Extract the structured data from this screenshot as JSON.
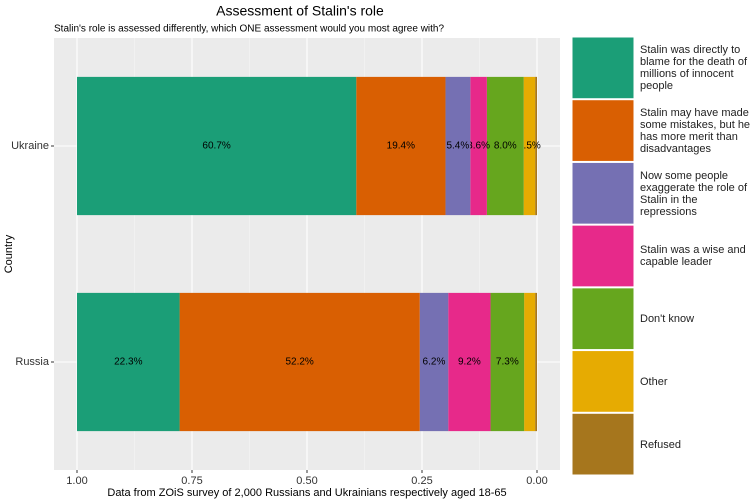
{
  "chart_data": {
    "type": "stacked-bar-horizontal",
    "title": "Assessment of Stalin's role",
    "subtitle": "Stalin's role is assessed differently, which ONE assessment would you most agree with?",
    "x_label": "Data from ZOiS survey of 2,000 Russians and Ukrainians respectively aged 18-65",
    "y_label": "Country",
    "categories": [
      "Ukraine",
      "Russia"
    ],
    "series": [
      {
        "name": "Stalin was directly to blame for the death of millions of innocent people",
        "color": "#1b9e77",
        "values": [
          0.607,
          0.223
        ],
        "value_labels": [
          "60.7%",
          "22.3%"
        ]
      },
      {
        "name": "Stalin may have made some mistakes, but he has more merit than disadvantages",
        "color": "#d95f02",
        "values": [
          0.194,
          0.522
        ],
        "value_labels": [
          "19.4%",
          "52.2%"
        ]
      },
      {
        "name": "Now some people exaggerate the role of Stalin in the repressions",
        "color": "#7570b3",
        "values": [
          0.054,
          0.062
        ],
        "value_labels": [
          "5.4%",
          "6.2%"
        ]
      },
      {
        "name": "Stalin was a wise and capable leader",
        "color": "#e7298a",
        "values": [
          0.036,
          0.092
        ],
        "value_labels": [
          "3.6%",
          "9.2%"
        ]
      },
      {
        "name": "Don't know",
        "color": "#66a61e",
        "values": [
          0.08,
          0.073
        ],
        "value_labels": [
          "8.0%",
          "7.3%"
        ]
      },
      {
        "name": "Other",
        "color": "#e6ab02",
        "values": [
          0.025,
          0.024
        ],
        "value_labels": [
          "2.5%",
          null
        ]
      },
      {
        "name": "Refused",
        "color": "#a6761d",
        "values": [
          0.004,
          0.004
        ],
        "value_labels": [
          null,
          null
        ]
      }
    ],
    "xlim": [
      1.05,
      -0.05
    ],
    "xticks": [
      {
        "value": 1,
        "label": "1.00"
      },
      {
        "value": 0.75,
        "label": "0.75"
      },
      {
        "value": 0.5,
        "label": "0.50"
      },
      {
        "value": 0.25,
        "label": "0.25"
      },
      {
        "value": 0,
        "label": "0.00"
      }
    ],
    "grid": true,
    "legend": "right"
  }
}
